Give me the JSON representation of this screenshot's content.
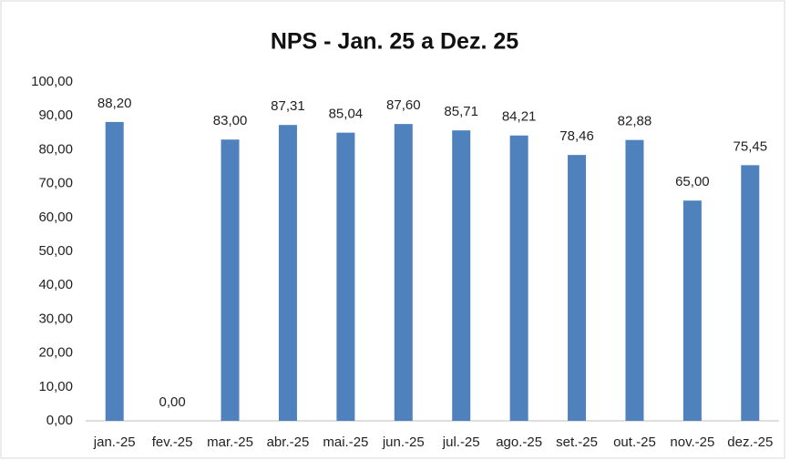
{
  "chart_data": {
    "type": "bar",
    "title": "NPS - Jan. 25 a Dez. 25",
    "categories": [
      "jan.-25",
      "fev.-25",
      "mar.-25",
      "abr.-25",
      "mai.-25",
      "jun.-25",
      "jul.-25",
      "ago.-25",
      "set.-25",
      "out.-25",
      "nov.-25",
      "dez.-25"
    ],
    "values": [
      88.2,
      0,
      83,
      87.31,
      85.04,
      87.6,
      85.71,
      84.21,
      78.46,
      82.88,
      65,
      75.45
    ],
    "value_labels": [
      "88,20",
      "0,00",
      "83,00",
      "87,31",
      "85,04",
      "87,60",
      "85,71",
      "84,21",
      "78,46",
      "82,88",
      "65,00",
      "75,45"
    ],
    "color": "#4f81bd",
    "ylim": [
      0,
      100
    ],
    "yticks": [
      {
        "value": 0,
        "label": "0,00"
      },
      {
        "value": 10,
        "label": "10,00"
      },
      {
        "value": 20,
        "label": "20,00"
      },
      {
        "value": 30,
        "label": "30,00"
      },
      {
        "value": 40,
        "label": "40,00"
      },
      {
        "value": 50,
        "label": "50,00"
      },
      {
        "value": 60,
        "label": "60,00"
      },
      {
        "value": 70,
        "label": "70,00"
      },
      {
        "value": 80,
        "label": "80,00"
      },
      {
        "value": 90,
        "label": "90,00"
      },
      {
        "value": 100,
        "label": "100,00"
      }
    ],
    "grid": false
  }
}
